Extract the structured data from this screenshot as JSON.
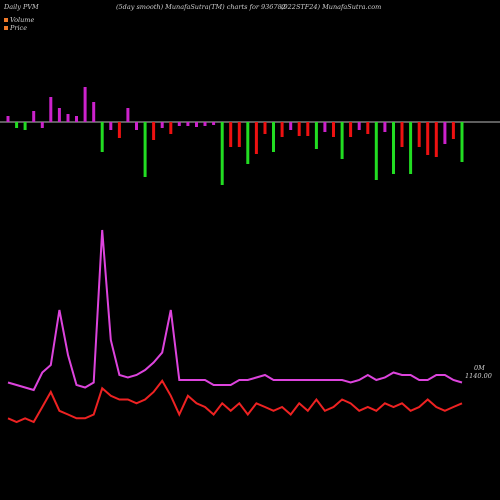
{
  "header": {
    "left": "Daily PVM",
    "middle": "(5day smooth) MunafaSutra(TM) charts for 936782",
    "right": "(922STF24) MunafaSutra.com"
  },
  "legend": [
    {
      "label": "Volume",
      "color": "#f07a2a"
    },
    {
      "label": "Price",
      "color": "#f07a2a"
    }
  ],
  "colors": {
    "up": "#22dd22",
    "down": "#ee1111",
    "pvm": "#cc22cc",
    "price_line": "#ee2222",
    "volume_line": "#dd44dd",
    "baseline": "#bbbbbb"
  },
  "chart_data": {
    "type": "bar",
    "title": "Daily PVM",
    "annotations": [
      "0M",
      "1140.00"
    ],
    "bars": [
      {
        "color": "magenta",
        "value": 6,
        "dir": "up"
      },
      {
        "color": "green",
        "value": 6,
        "dir": "down"
      },
      {
        "color": "green",
        "value": 8,
        "dir": "down"
      },
      {
        "color": "magenta",
        "value": 11,
        "dir": "up"
      },
      {
        "color": "magenta",
        "value": 6,
        "dir": "down"
      },
      {
        "color": "magenta",
        "value": 25,
        "dir": "up"
      },
      {
        "color": "magenta",
        "value": 14,
        "dir": "up"
      },
      {
        "color": "magenta",
        "value": 8,
        "dir": "up"
      },
      {
        "color": "magenta",
        "value": 6,
        "dir": "up"
      },
      {
        "color": "magenta",
        "value": 35,
        "dir": "up"
      },
      {
        "color": "magenta",
        "value": 20,
        "dir": "up"
      },
      {
        "color": "green",
        "value": 30,
        "dir": "down"
      },
      {
        "color": "magenta",
        "value": 8,
        "dir": "down"
      },
      {
        "color": "red",
        "value": 16,
        "dir": "down"
      },
      {
        "color": "magenta",
        "value": 14,
        "dir": "up"
      },
      {
        "color": "magenta",
        "value": 8,
        "dir": "down"
      },
      {
        "color": "green",
        "value": 55,
        "dir": "down"
      },
      {
        "color": "red",
        "value": 18,
        "dir": "down"
      },
      {
        "color": "magenta",
        "value": 6,
        "dir": "down"
      },
      {
        "color": "red",
        "value": 12,
        "dir": "down"
      },
      {
        "color": "magenta",
        "value": 4,
        "dir": "down"
      },
      {
        "color": "magenta",
        "value": 4,
        "dir": "down"
      },
      {
        "color": "magenta",
        "value": 5,
        "dir": "down"
      },
      {
        "color": "magenta",
        "value": 4,
        "dir": "down"
      },
      {
        "color": "magenta",
        "value": 3,
        "dir": "down"
      },
      {
        "color": "green",
        "value": 63,
        "dir": "down"
      },
      {
        "color": "red",
        "value": 25,
        "dir": "down"
      },
      {
        "color": "red",
        "value": 25,
        "dir": "down"
      },
      {
        "color": "green",
        "value": 42,
        "dir": "down"
      },
      {
        "color": "red",
        "value": 32,
        "dir": "down"
      },
      {
        "color": "red",
        "value": 12,
        "dir": "down"
      },
      {
        "color": "green",
        "value": 30,
        "dir": "down"
      },
      {
        "color": "red",
        "value": 15,
        "dir": "down"
      },
      {
        "color": "magenta",
        "value": 8,
        "dir": "down"
      },
      {
        "color": "red",
        "value": 14,
        "dir": "down"
      },
      {
        "color": "red",
        "value": 14,
        "dir": "down"
      },
      {
        "color": "green",
        "value": 27,
        "dir": "down"
      },
      {
        "color": "magenta",
        "value": 10,
        "dir": "down"
      },
      {
        "color": "red",
        "value": 15,
        "dir": "down"
      },
      {
        "color": "green",
        "value": 37,
        "dir": "down"
      },
      {
        "color": "red",
        "value": 15,
        "dir": "down"
      },
      {
        "color": "magenta",
        "value": 8,
        "dir": "down"
      },
      {
        "color": "red",
        "value": 12,
        "dir": "down"
      },
      {
        "color": "green",
        "value": 58,
        "dir": "down"
      },
      {
        "color": "magenta",
        "value": 10,
        "dir": "down"
      },
      {
        "color": "green",
        "value": 52,
        "dir": "down"
      },
      {
        "color": "red",
        "value": 25,
        "dir": "down"
      },
      {
        "color": "green",
        "value": 52,
        "dir": "down"
      },
      {
        "color": "red",
        "value": 25,
        "dir": "down"
      },
      {
        "color": "red",
        "value": 33,
        "dir": "down"
      },
      {
        "color": "red",
        "value": 35,
        "dir": "down"
      },
      {
        "color": "magenta",
        "value": 22,
        "dir": "down"
      },
      {
        "color": "red",
        "value": 17,
        "dir": "down"
      },
      {
        "color": "green",
        "value": 40,
        "dir": "down"
      }
    ],
    "volume_line": [
      7.5,
      7.0,
      6.5,
      6.0,
      9.5,
      11.0,
      22.0,
      13.0,
      7.0,
      6.5,
      7.5,
      38.0,
      16.0,
      9.0,
      8.5,
      9.0,
      10.0,
      11.5,
      13.5,
      22.0,
      8.0,
      8.0,
      8.0,
      8.0,
      7.0,
      7.0,
      7.0,
      8.0,
      8.0,
      8.5,
      9.0,
      8.0,
      8.0,
      8.0,
      8.0,
      8.0,
      8.0,
      8.0,
      8.0,
      8.0,
      7.5,
      8.0,
      9.0,
      8.0,
      8.5,
      9.5,
      9.0,
      9.0,
      8.0,
      8.0,
      9.0,
      9.0,
      8.0,
      7.5
    ],
    "price_line": [
      4.5,
      4.0,
      4.5,
      4.0,
      6.0,
      8.0,
      5.5,
      5.0,
      4.5,
      4.5,
      5.0,
      8.5,
      7.5,
      7.0,
      7.0,
      6.5,
      7.0,
      8.0,
      9.5,
      7.5,
      5.0,
      7.5,
      6.5,
      6.0,
      5.0,
      6.5,
      5.5,
      6.5,
      5.0,
      6.5,
      6.0,
      5.5,
      6.0,
      5.0,
      6.5,
      5.5,
      7.0,
      5.5,
      6.0,
      7.0,
      6.5,
      5.5,
      6.0,
      5.5,
      6.5,
      6.0,
      6.5,
      5.5,
      6.0,
      7.0,
      6.0,
      5.5,
      6.0,
      6.5
    ]
  }
}
